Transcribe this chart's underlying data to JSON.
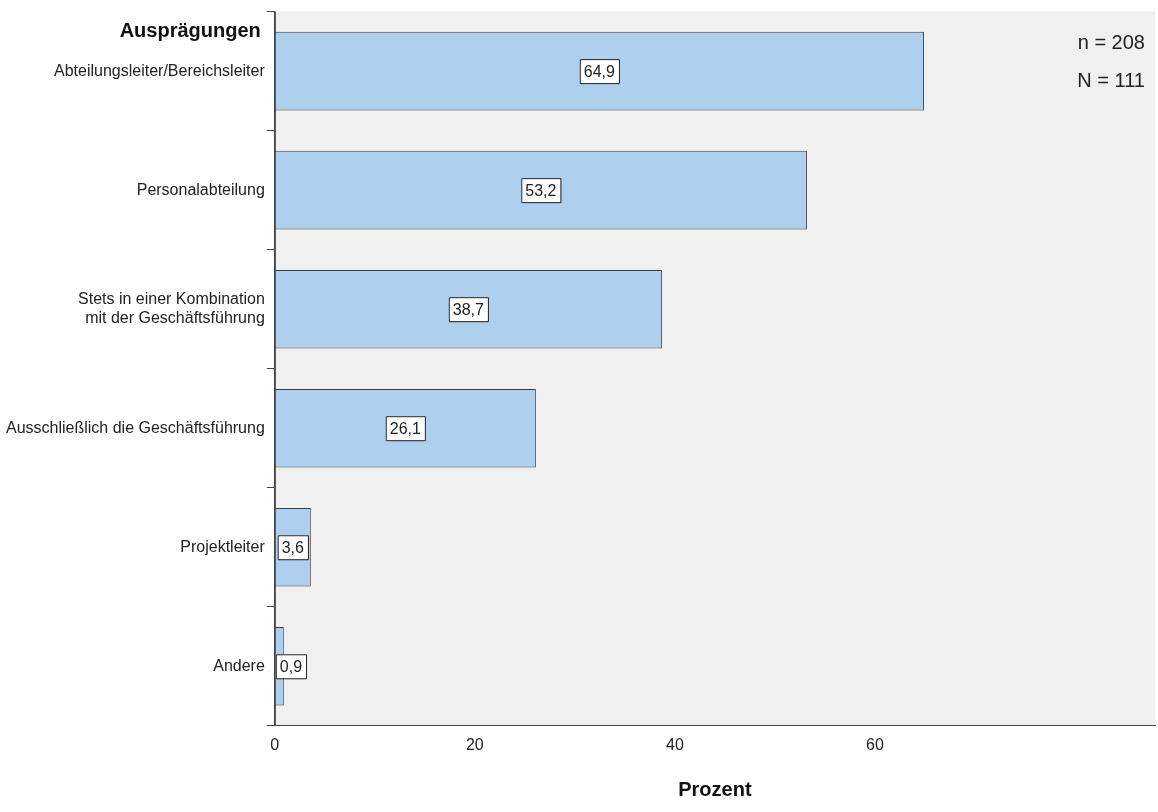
{
  "chart_data": {
    "type": "bar",
    "orientation": "horizontal",
    "ylabel": "Ausprägungen",
    "xlabel": "Prozent",
    "categories": [
      "Abteilungsleiter/Bereichsleiter",
      "Personalabteilung",
      "Stets in einer Kombination\nmit der Geschäftsführung",
      "Ausschließlich die Geschäftsführung",
      "Projektleiter",
      "Andere"
    ],
    "values": [
      64.9,
      53.2,
      38.7,
      26.1,
      3.6,
      0.9
    ],
    "value_labels": [
      "64,9",
      "53,2",
      "38,7",
      "26,1",
      "3,6",
      "0,9"
    ],
    "color": "#aed0ee",
    "xlim": [
      0,
      88
    ],
    "xticks": [
      0,
      20,
      40,
      60
    ],
    "grid": false,
    "legend": false,
    "annotations": [
      "n = 208",
      "N = 111"
    ]
  }
}
